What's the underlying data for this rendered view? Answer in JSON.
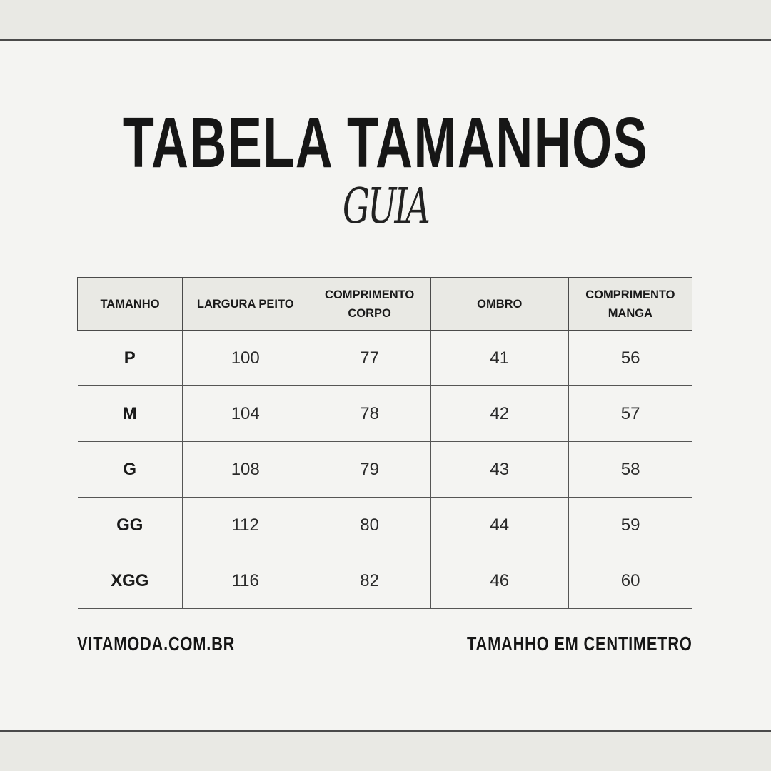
{
  "title": "TABELA TAMANHOS",
  "subtitle": "GUIA",
  "table": {
    "headers": [
      "TAMANHO",
      "LARGURA PEITO",
      "COMPRIMENTO CORPO",
      "OMBRO",
      "COMPRIMENTO MANGA"
    ],
    "rows": [
      [
        "P",
        "100",
        "77",
        "41",
        "56"
      ],
      [
        "M",
        "104",
        "78",
        "42",
        "57"
      ],
      [
        "G",
        "108",
        "79",
        "43",
        "58"
      ],
      [
        "GG",
        "112",
        "80",
        "44",
        "59"
      ],
      [
        "XGG",
        "116",
        "82",
        "46",
        "60"
      ]
    ]
  },
  "footer": {
    "website": "VITAMODA.COM.BR",
    "note": "TAMAHHO EM CENTIMETRO"
  },
  "colors": {
    "background": "#f4f4f2",
    "header_fill": "#e9e9e4",
    "text": "#1a1a1a"
  }
}
